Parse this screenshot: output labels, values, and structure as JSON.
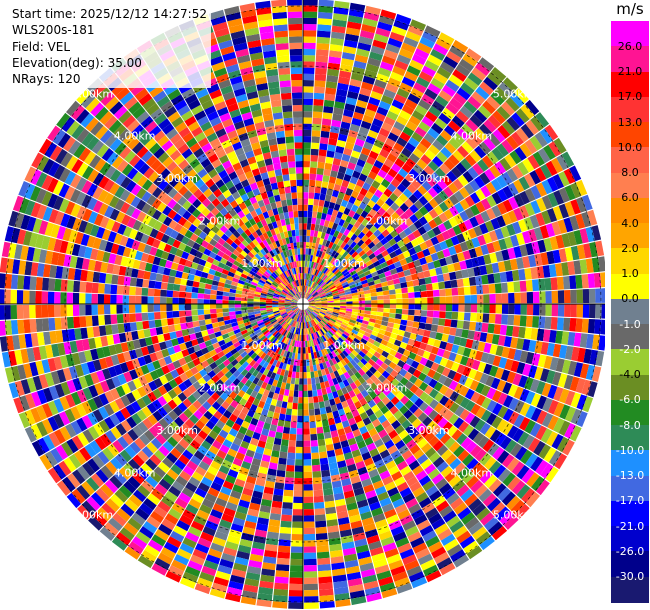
{
  "info": {
    "start_time": "Start time: 2025/12/12 14:27:52",
    "station": "WLS200s-181",
    "field": "Field: VEL",
    "elevation": "Elevation(deg): 35.00",
    "nrays": "NRays: 120"
  },
  "colorbar": {
    "unit": "m/s",
    "ticks": [
      "26.0",
      "21.0",
      "17.0",
      "13.0",
      "10.0",
      "8.0",
      "6.0",
      "4.0",
      "2.0",
      "1.0",
      "0.0",
      "-1.0",
      "-2.0",
      "-4.0",
      "-6.0",
      "-8.0",
      "-10.0",
      "-13.0",
      "-17.0",
      "-21.0",
      "-26.0",
      "-30.0"
    ],
    "colors": [
      "#ff00ff",
      "#ff1493",
      "#ff0000",
      "#ff3333",
      "#ff4500",
      "#ff6347",
      "#ff7f50",
      "#ff8c00",
      "#ffa500",
      "#ffd700",
      "#ffff00",
      "#708090",
      "#696969",
      "#9acd32",
      "#6b8e23",
      "#228b22",
      "#2e8b57",
      "#1e90ff",
      "#4169e1",
      "#0000ff",
      "#0000cd",
      "#00008b",
      "#191970"
    ]
  },
  "chart_data": {
    "type": "heatmap",
    "subtype": "ppi-polar",
    "nrays": 120,
    "range_unit": "km",
    "range_ring_labels": [
      "1.00km",
      "2.00km",
      "3.00km",
      "4.00km",
      "5.00km"
    ],
    "value_range": [
      -30.0,
      26.0
    ],
    "colorbar_label": "m/s"
  }
}
